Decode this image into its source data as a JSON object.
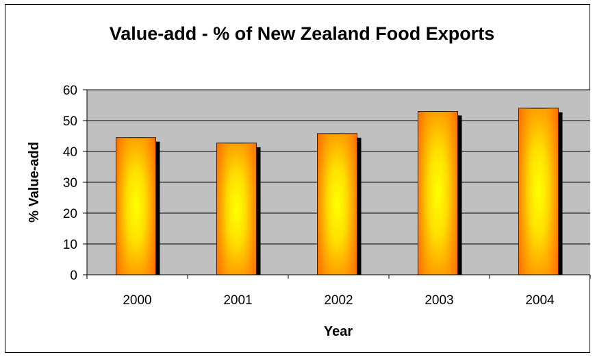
{
  "chart_data": {
    "type": "bar",
    "title": "Value-add - % of New Zealand Food Exports",
    "xlabel": "Year",
    "ylabel": "% Value-add",
    "categories": [
      "2000",
      "2001",
      "2002",
      "2003",
      "2004"
    ],
    "values": [
      44.5,
      42.7,
      45.8,
      53.0,
      54.0
    ],
    "ylim": [
      0,
      60
    ],
    "yticks": [
      "0",
      "10",
      "20",
      "30",
      "40",
      "50",
      "60"
    ],
    "grid": true,
    "legend": "none",
    "colors": {
      "plot_background": "#c0c0c0",
      "bar_edge": "#ff6600",
      "bar_center": "#ffff00",
      "bar_shadow": "#000000",
      "gridline": "#000000"
    }
  }
}
